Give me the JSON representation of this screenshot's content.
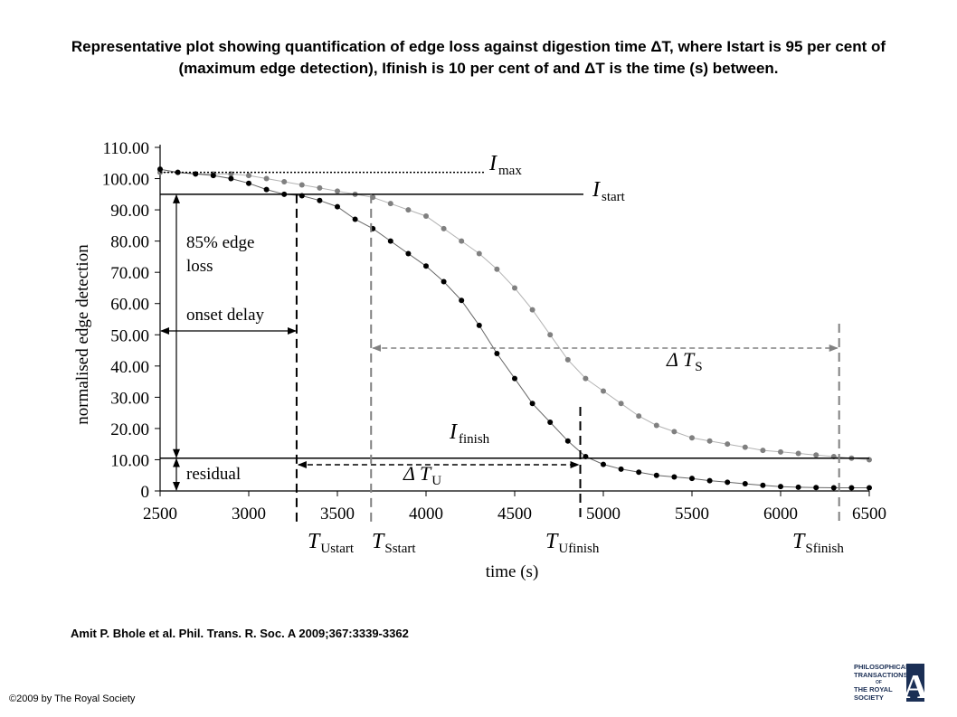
{
  "slide": {
    "title": "Representative plot showing quantification of edge loss against digestion time ΔT, where Istart is 95 per cent of (maximum edge detection), Ifinish is 10 per cent of and ΔT is the time (s) between.",
    "citation": "Amit P. Bhole et al. Phil. Trans. R. Soc. A 2009;367:3339-3362",
    "copyright": "©2009 by The Royal Society",
    "logo": {
      "line1": "PHILOSOPHICAL",
      "line2": "TRANSACTIONS",
      "line3": "OF",
      "line4": "THE ROYAL",
      "line5": "SOCIETY",
      "letter": "A"
    }
  },
  "chart_data": {
    "type": "scatter",
    "xlabel": "time (s)",
    "ylabel": "normalised edge detection",
    "xlim": [
      2500,
      6500
    ],
    "ylim": [
      0,
      110
    ],
    "xticks": [
      2500,
      3000,
      3500,
      4000,
      4500,
      5000,
      5500,
      6000,
      6500
    ],
    "yticks": [
      0,
      10,
      20,
      30,
      40,
      50,
      60,
      70,
      80,
      90,
      100,
      110
    ],
    "ytick_labels": [
      "0",
      "10.00",
      "20.00",
      "30.00",
      "40.00",
      "50.00",
      "60.00",
      "70.00",
      "80.00",
      "90.00",
      "100.00",
      "110.00"
    ],
    "grid": false,
    "series": [
      {
        "color": "#000000",
        "points": [
          [
            2500,
            103
          ],
          [
            2600,
            102
          ],
          [
            2700,
            101.5
          ],
          [
            2800,
            101
          ],
          [
            2900,
            100
          ],
          [
            3000,
            98.5
          ],
          [
            3100,
            96.5
          ],
          [
            3200,
            95
          ],
          [
            3300,
            94.5
          ],
          [
            3400,
            93
          ],
          [
            3500,
            91
          ],
          [
            3600,
            87
          ],
          [
            3700,
            84
          ],
          [
            3800,
            80
          ],
          [
            3900,
            76
          ],
          [
            4000,
            72
          ],
          [
            4100,
            67
          ],
          [
            4200,
            61
          ],
          [
            4300,
            53
          ],
          [
            4400,
            44
          ],
          [
            4500,
            36
          ],
          [
            4600,
            28
          ],
          [
            4700,
            22
          ],
          [
            4800,
            16
          ],
          [
            4900,
            11
          ],
          [
            5000,
            8.5
          ],
          [
            5100,
            7
          ],
          [
            5200,
            6
          ],
          [
            5300,
            5
          ],
          [
            5400,
            4.5
          ],
          [
            5500,
            4
          ],
          [
            5600,
            3.3
          ],
          [
            5700,
            2.8
          ],
          [
            5800,
            2.3
          ],
          [
            5900,
            1.8
          ],
          [
            6000,
            1.4
          ],
          [
            6100,
            1.2
          ],
          [
            6200,
            1.1
          ],
          [
            6300,
            1
          ],
          [
            6400,
            1
          ],
          [
            6500,
            1
          ]
        ]
      },
      {
        "color": "#808080",
        "points": [
          [
            2500,
            102
          ],
          [
            2600,
            102
          ],
          [
            2700,
            101.5
          ],
          [
            2800,
            101.5
          ],
          [
            2900,
            101.5
          ],
          [
            3000,
            101
          ],
          [
            3100,
            100
          ],
          [
            3200,
            99
          ],
          [
            3300,
            98
          ],
          [
            3400,
            97
          ],
          [
            3500,
            96
          ],
          [
            3600,
            95
          ],
          [
            3700,
            94
          ],
          [
            3800,
            92
          ],
          [
            3900,
            90
          ],
          [
            4000,
            88
          ],
          [
            4100,
            84
          ],
          [
            4200,
            80
          ],
          [
            4300,
            76
          ],
          [
            4400,
            71
          ],
          [
            4500,
            65
          ],
          [
            4600,
            58
          ],
          [
            4700,
            50
          ],
          [
            4800,
            42
          ],
          [
            4900,
            36
          ],
          [
            5000,
            32
          ],
          [
            5100,
            28
          ],
          [
            5200,
            24
          ],
          [
            5300,
            21
          ],
          [
            5400,
            19
          ],
          [
            5500,
            17
          ],
          [
            5600,
            16
          ],
          [
            5700,
            15
          ],
          [
            5800,
            14
          ],
          [
            5900,
            13
          ],
          [
            6000,
            12.5
          ],
          [
            6100,
            12
          ],
          [
            6200,
            11.5
          ],
          [
            6300,
            11
          ],
          [
            6400,
            10.5
          ],
          [
            6500,
            10
          ]
        ]
      }
    ],
    "reference_lines": {
      "I_max": {
        "y": 102,
        "style": "dotted"
      },
      "I_start": {
        "y": 95,
        "style": "solid"
      },
      "I_finish": {
        "y": 10.5,
        "style": "solid"
      }
    },
    "vertical_markers": {
      "T_Ustart": {
        "x": 3270,
        "color": "#000000"
      },
      "T_Sstart": {
        "x": 3690,
        "color": "#808080"
      },
      "T_Ufinish": {
        "x": 4870,
        "color": "#000000"
      },
      "T_Sfinish": {
        "x": 6330,
        "color": "#808080"
      }
    },
    "annotations": {
      "Imax": "I",
      "Imax_sub": "max",
      "Istart": "I",
      "Istart_sub": "start",
      "Ifinish": "I",
      "Ifinish_sub": "finish",
      "edge_loss_line1": "85% edge",
      "edge_loss_line2": "loss",
      "onset_delay": "onset delay",
      "residual": "residual",
      "deltaTS": "Δ T",
      "deltaTS_sub": "S",
      "deltaTU": "Δ T",
      "deltaTU_sub": "U",
      "TUstart": "T",
      "TUstart_sub": "Ustart",
      "TSstart": "T",
      "TSstart_sub": "Sstart",
      "TUfinish": "T",
      "TUfinish_sub": "Ufinish",
      "TSfinish": "T",
      "TSfinish_sub": "Sfinish"
    }
  }
}
